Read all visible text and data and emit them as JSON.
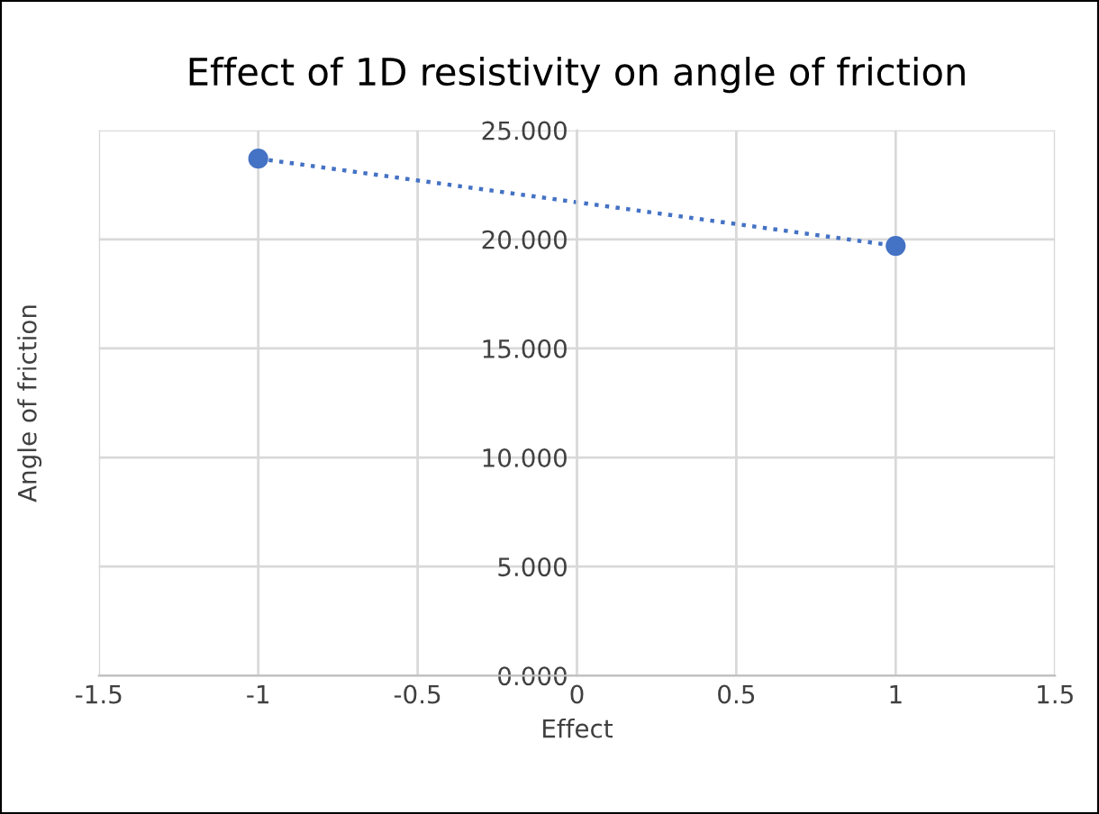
{
  "chart_data": {
    "type": "line",
    "title": "Effect of 1D resistivity on angle of friction",
    "xlabel": "Effect",
    "ylabel": "Angle of friction",
    "x": [
      -1,
      1
    ],
    "series": [
      {
        "color": "#4472c4",
        "values": [
          23.7,
          19.7
        ]
      }
    ],
    "xlim": [
      -1.5,
      1.5
    ],
    "xticks": [
      -1.5,
      -1,
      -0.5,
      0,
      0.5,
      1,
      1.5
    ],
    "ylim": [
      0,
      25
    ],
    "yticks": [
      {
        "value": 0,
        "label": "0.000"
      },
      {
        "value": 5,
        "label": "5.000"
      },
      {
        "value": 10,
        "label": "10.000"
      },
      {
        "value": 15,
        "label": "15.000"
      },
      {
        "value": 20,
        "label": "20.000"
      },
      {
        "value": 25,
        "label": "25.000"
      }
    ],
    "grid": true,
    "marker": "circle",
    "line_style": "dotted"
  }
}
